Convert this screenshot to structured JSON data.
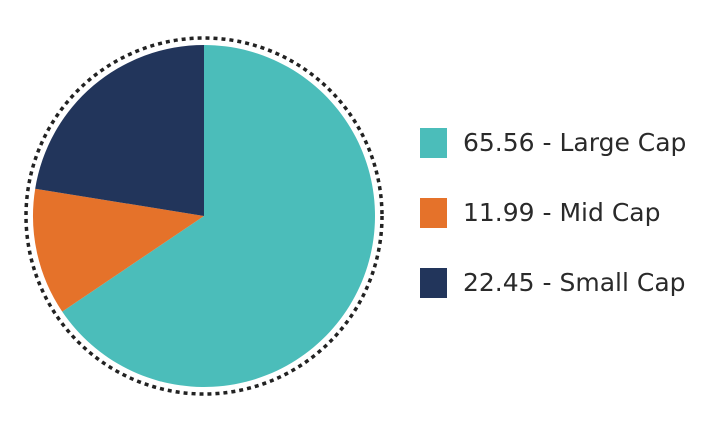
{
  "chart_data": {
    "type": "pie",
    "categories": [
      "65.56 - Large Cap",
      "11.99 - Mid Cap",
      "22.45 - Small Cap"
    ],
    "values": [
      65.56,
      11.99,
      22.45
    ],
    "colors": [
      "#4bbdba",
      "#e5722a",
      "#22355b"
    ],
    "legend": "right"
  }
}
